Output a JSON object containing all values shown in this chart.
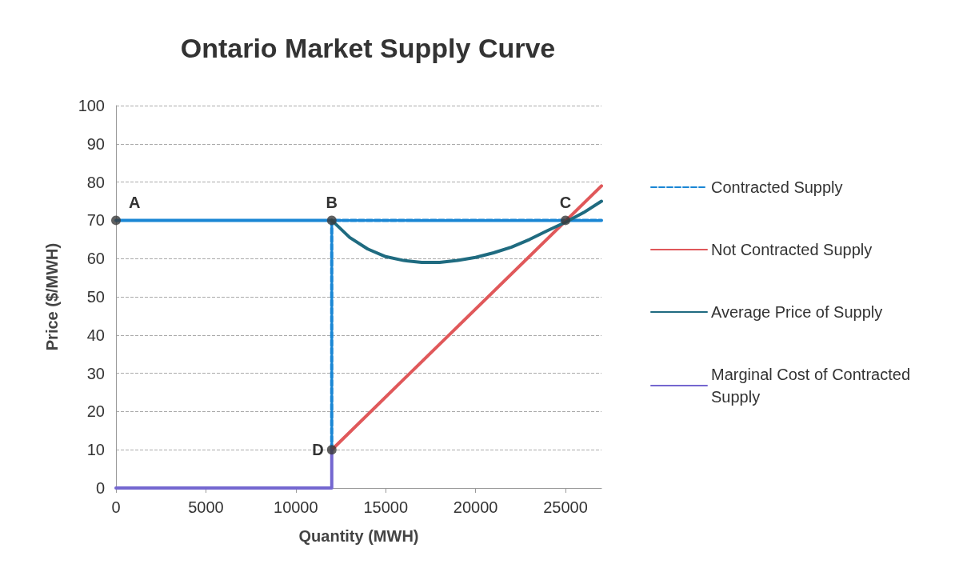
{
  "chart_data": {
    "type": "line",
    "title": "Ontario Market Supply Curve",
    "xlabel": "Quantity (MWH)",
    "ylabel": "Price ($/MWH)",
    "xlim": [
      0,
      27000
    ],
    "xticks": [
      0,
      5000,
      10000,
      15000,
      20000,
      25000
    ],
    "ylim": [
      0,
      100
    ],
    "yticks": [
      0,
      10,
      20,
      30,
      40,
      50,
      60,
      70,
      80,
      90,
      100
    ],
    "grid": "y",
    "legend": "right",
    "marker": "none",
    "series": [
      {
        "name": "Contracted Supply",
        "color": "#1a86d4",
        "line_style": "dashed",
        "x": [
          12000,
          12000,
          0,
          27000
        ],
        "values": [
          10,
          70,
          70,
          70
        ]
      },
      {
        "name": "Not Contracted Supply",
        "color": "#e0585a",
        "x": [
          12000,
          27000
        ],
        "values": [
          10,
          79
        ]
      },
      {
        "name": "Average Price of Supply",
        "color": "#1f6b80",
        "x": [
          12000,
          13000,
          14000,
          15000,
          16000,
          17000,
          18000,
          19000,
          20000,
          21000,
          22000,
          23000,
          24000,
          25000,
          26000,
          27000
        ],
        "values": [
          70,
          65.5,
          62.5,
          60.5,
          59.5,
          59,
          59,
          59.5,
          60.3,
          61.5,
          63,
          65,
          67.3,
          69.5,
          72,
          75
        ]
      },
      {
        "name": "Marginal Cost of Contracted Supply",
        "color": "#7467d0",
        "x": [
          0,
          12000,
          12000
        ],
        "values": [
          0,
          0,
          10
        ]
      },
      {
        "type": "scatter",
        "marker": "circle",
        "color": "#3a3a3a",
        "x": [
          0,
          12000,
          25000,
          12000
        ],
        "values": [
          70,
          70,
          70,
          10
        ]
      }
    ],
    "annotations": [
      {
        "text": "A",
        "x": 0,
        "y": 70
      },
      {
        "text": "B",
        "x": 12000,
        "y": 70
      },
      {
        "text": "C",
        "x": 25000,
        "y": 70
      },
      {
        "text": "D",
        "x": 12000,
        "y": 10
      }
    ]
  }
}
